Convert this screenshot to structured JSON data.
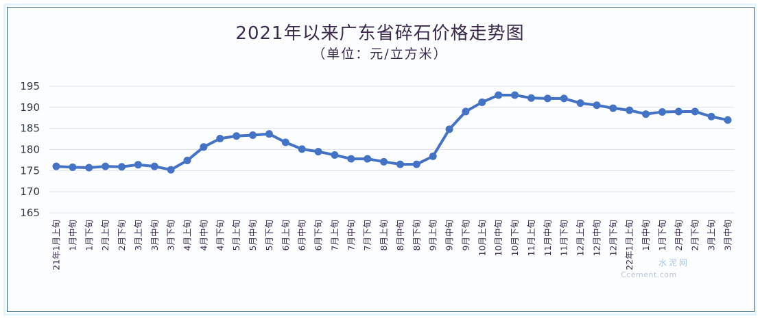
{
  "chart_data": {
    "type": "line",
    "title": "2021年以来广东省碎石价格走势图",
    "subtitle": "（单位：元/立方米）",
    "xlabel": "",
    "ylabel": "元/立方米",
    "ylim": [
      165,
      195
    ],
    "yticks": [
      165,
      170,
      175,
      180,
      185,
      190,
      195
    ],
    "grid": true,
    "legend": "none",
    "line_color": "#4472c4",
    "categories": [
      "21年1月上旬",
      "1月中旬",
      "1月下旬",
      "2月上旬",
      "2月下旬",
      "3月上旬",
      "3月中旬",
      "3月下旬",
      "4月上旬",
      "4月中旬",
      "4月下旬",
      "5月上旬",
      "5月中旬",
      "5月下旬",
      "6月上旬",
      "6月中旬",
      "6月下旬",
      "7月上旬",
      "7月中旬",
      "7月下旬",
      "8月上旬",
      "8月中旬",
      "8月下旬",
      "9月上旬",
      "9月中旬",
      "9月下旬",
      "10月上旬",
      "10月中旬",
      "10月下旬",
      "11月上旬",
      "11月中旬",
      "11月下旬",
      "12月上旬",
      "12月中旬",
      "12月下旬",
      "22年1月上旬",
      "1月中旬",
      "1月下旬",
      "2月中旬",
      "2月下旬",
      "3月上旬",
      "3月中旬"
    ],
    "series": [
      {
        "name": "广东省碎石价格",
        "values": [
          176.0,
          175.8,
          175.7,
          176.0,
          175.9,
          176.4,
          176.0,
          175.2,
          177.4,
          180.6,
          182.6,
          183.2,
          183.4,
          183.7,
          181.7,
          180.1,
          179.5,
          178.7,
          177.8,
          177.8,
          177.1,
          176.5,
          176.5,
          178.4,
          184.8,
          189.0,
          191.2,
          192.9,
          192.9,
          192.2,
          192.1,
          192.1,
          191.0,
          190.5,
          189.8,
          189.3,
          188.4,
          188.9,
          189.0,
          189.0,
          187.8,
          187.0
        ]
      }
    ]
  },
  "watermark": {
    "cn": "水泥网",
    "en": "Ccement.com"
  }
}
